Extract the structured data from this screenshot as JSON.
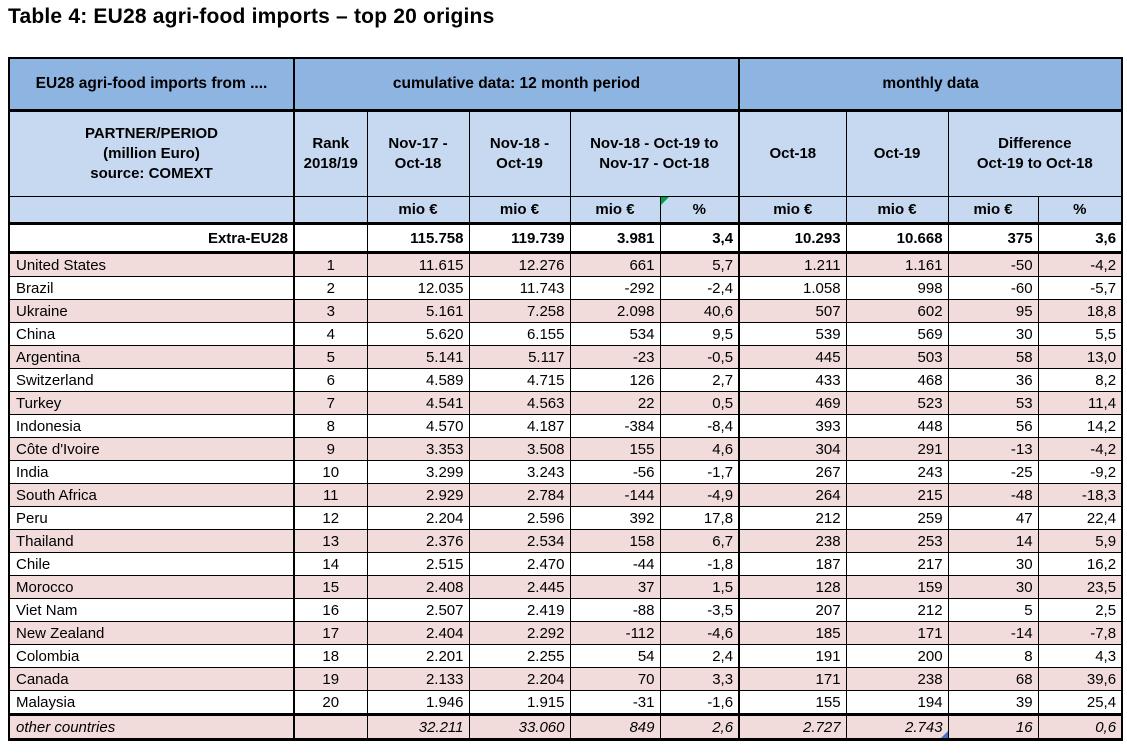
{
  "page": {
    "title": "Table 4: EU28 agri-food imports – top 20 origins"
  },
  "colors": {
    "header_dark_blue": "#8EB4E2",
    "header_light_blue": "#C7D9F1",
    "row_pink": "#F2DCDB",
    "comment_marker_green": "#00A14B",
    "note_marker_blue": "#4472C4",
    "border_black": "#000000"
  },
  "table": {
    "corner_header": "EU28 agri-food imports from ....",
    "group_headers": {
      "cumulative": "cumulative data: 12 month period",
      "monthly": "monthly data"
    },
    "col_headers": {
      "partner": "PARTNER/PERIOD\n(million Euro)\nsource: COMEXT",
      "rank": "Rank\n2018/19",
      "cum_period_1": "Nov-17 -\nOct-18",
      "cum_period_2": "Nov-18 -\nOct-19",
      "cum_diff": "Nov-18 - Oct-19 to\nNov-17 - Oct-18",
      "month_1": "Oct-18",
      "month_2": "Oct-19",
      "month_diff": "Difference\nOct-19 to Oct-18"
    },
    "unit_row": {
      "mio": "mio €",
      "pct": "%"
    },
    "rows": [
      {
        "style": "total",
        "partner": "Extra-EU28",
        "rank": "",
        "cum_2017_18": "115.758",
        "cum_2018_19": "119.739",
        "diff_mio": "3.981",
        "diff_pct": "3,4",
        "oct18": "10.293",
        "oct19": "10.668",
        "mdiff_mio": "375",
        "mdiff_pct": "3,6"
      },
      {
        "style": "pink",
        "partner": "United States",
        "rank": "1",
        "cum_2017_18": "11.615",
        "cum_2018_19": "12.276",
        "diff_mio": "661",
        "diff_pct": "5,7",
        "oct18": "1.211",
        "oct19": "1.161",
        "mdiff_mio": "-50",
        "mdiff_pct": "-4,2"
      },
      {
        "style": "white",
        "partner": "Brazil",
        "rank": "2",
        "cum_2017_18": "12.035",
        "cum_2018_19": "11.743",
        "diff_mio": "-292",
        "diff_pct": "-2,4",
        "oct18": "1.058",
        "oct19": "998",
        "mdiff_mio": "-60",
        "mdiff_pct": "-5,7"
      },
      {
        "style": "pink",
        "partner": "Ukraine",
        "rank": "3",
        "cum_2017_18": "5.161",
        "cum_2018_19": "7.258",
        "diff_mio": "2.098",
        "diff_pct": "40,6",
        "oct18": "507",
        "oct19": "602",
        "mdiff_mio": "95",
        "mdiff_pct": "18,8"
      },
      {
        "style": "white",
        "partner": "China",
        "rank": "4",
        "cum_2017_18": "5.620",
        "cum_2018_19": "6.155",
        "diff_mio": "534",
        "diff_pct": "9,5",
        "oct18": "539",
        "oct19": "569",
        "mdiff_mio": "30",
        "mdiff_pct": "5,5"
      },
      {
        "style": "pink",
        "partner": "Argentina",
        "rank": "5",
        "cum_2017_18": "5.141",
        "cum_2018_19": "5.117",
        "diff_mio": "-23",
        "diff_pct": "-0,5",
        "oct18": "445",
        "oct19": "503",
        "mdiff_mio": "58",
        "mdiff_pct": "13,0"
      },
      {
        "style": "white",
        "partner": "Switzerland",
        "rank": "6",
        "cum_2017_18": "4.589",
        "cum_2018_19": "4.715",
        "diff_mio": "126",
        "diff_pct": "2,7",
        "oct18": "433",
        "oct19": "468",
        "mdiff_mio": "36",
        "mdiff_pct": "8,2"
      },
      {
        "style": "pink",
        "partner": "Turkey",
        "rank": "7",
        "cum_2017_18": "4.541",
        "cum_2018_19": "4.563",
        "diff_mio": "22",
        "diff_pct": "0,5",
        "oct18": "469",
        "oct19": "523",
        "mdiff_mio": "53",
        "mdiff_pct": "11,4"
      },
      {
        "style": "white",
        "partner": "Indonesia",
        "rank": "8",
        "cum_2017_18": "4.570",
        "cum_2018_19": "4.187",
        "diff_mio": "-384",
        "diff_pct": "-8,4",
        "oct18": "393",
        "oct19": "448",
        "mdiff_mio": "56",
        "mdiff_pct": "14,2"
      },
      {
        "style": "pink",
        "partner": "Côte d'Ivoire",
        "rank": "9",
        "cum_2017_18": "3.353",
        "cum_2018_19": "3.508",
        "diff_mio": "155",
        "diff_pct": "4,6",
        "oct18": "304",
        "oct19": "291",
        "mdiff_mio": "-13",
        "mdiff_pct": "-4,2"
      },
      {
        "style": "white",
        "partner": "India",
        "rank": "10",
        "cum_2017_18": "3.299",
        "cum_2018_19": "3.243",
        "diff_mio": "-56",
        "diff_pct": "-1,7",
        "oct18": "267",
        "oct19": "243",
        "mdiff_mio": "-25",
        "mdiff_pct": "-9,2"
      },
      {
        "style": "pink",
        "partner": "South Africa",
        "rank": "11",
        "cum_2017_18": "2.929",
        "cum_2018_19": "2.784",
        "diff_mio": "-144",
        "diff_pct": "-4,9",
        "oct18": "264",
        "oct19": "215",
        "mdiff_mio": "-48",
        "mdiff_pct": "-18,3"
      },
      {
        "style": "white",
        "partner": "Peru",
        "rank": "12",
        "cum_2017_18": "2.204",
        "cum_2018_19": "2.596",
        "diff_mio": "392",
        "diff_pct": "17,8",
        "oct18": "212",
        "oct19": "259",
        "mdiff_mio": "47",
        "mdiff_pct": "22,4"
      },
      {
        "style": "pink",
        "partner": "Thailand",
        "rank": "13",
        "cum_2017_18": "2.376",
        "cum_2018_19": "2.534",
        "diff_mio": "158",
        "diff_pct": "6,7",
        "oct18": "238",
        "oct19": "253",
        "mdiff_mio": "14",
        "mdiff_pct": "5,9"
      },
      {
        "style": "white",
        "partner": "Chile",
        "rank": "14",
        "cum_2017_18": "2.515",
        "cum_2018_19": "2.470",
        "diff_mio": "-44",
        "diff_pct": "-1,8",
        "oct18": "187",
        "oct19": "217",
        "mdiff_mio": "30",
        "mdiff_pct": "16,2"
      },
      {
        "style": "pink",
        "partner": "Morocco",
        "rank": "15",
        "cum_2017_18": "2.408",
        "cum_2018_19": "2.445",
        "diff_mio": "37",
        "diff_pct": "1,5",
        "oct18": "128",
        "oct19": "159",
        "mdiff_mio": "30",
        "mdiff_pct": "23,5"
      },
      {
        "style": "white",
        "partner": "Viet Nam",
        "rank": "16",
        "cum_2017_18": "2.507",
        "cum_2018_19": "2.419",
        "diff_mio": "-88",
        "diff_pct": "-3,5",
        "oct18": "207",
        "oct19": "212",
        "mdiff_mio": "5",
        "mdiff_pct": "2,5"
      },
      {
        "style": "pink",
        "partner": "New Zealand",
        "rank": "17",
        "cum_2017_18": "2.404",
        "cum_2018_19": "2.292",
        "diff_mio": "-112",
        "diff_pct": "-4,6",
        "oct18": "185",
        "oct19": "171",
        "mdiff_mio": "-14",
        "mdiff_pct": "-7,8"
      },
      {
        "style": "white",
        "partner": "Colombia",
        "rank": "18",
        "cum_2017_18": "2.201",
        "cum_2018_19": "2.255",
        "diff_mio": "54",
        "diff_pct": "2,4",
        "oct18": "191",
        "oct19": "200",
        "mdiff_mio": "8",
        "mdiff_pct": "4,3"
      },
      {
        "style": "pink",
        "partner": "Canada",
        "rank": "19",
        "cum_2017_18": "2.133",
        "cum_2018_19": "2.204",
        "diff_mio": "70",
        "diff_pct": "3,3",
        "oct18": "171",
        "oct19": "238",
        "mdiff_mio": "68",
        "mdiff_pct": "39,6"
      },
      {
        "style": "white",
        "partner": "Malaysia",
        "rank": "20",
        "cum_2017_18": "1.946",
        "cum_2018_19": "1.915",
        "diff_mio": "-31",
        "diff_pct": "-1,6",
        "oct18": "155",
        "oct19": "194",
        "mdiff_mio": "39",
        "mdiff_pct": "25,4"
      },
      {
        "style": "pink other",
        "partner": "other countries",
        "rank": "",
        "cum_2017_18": "32.211",
        "cum_2018_19": "33.060",
        "diff_mio": "849",
        "diff_pct": "2,6",
        "oct18": "2.727",
        "oct19": "2.743",
        "mdiff_mio": "16",
        "mdiff_pct": "0,6",
        "note_marker": true
      }
    ]
  }
}
